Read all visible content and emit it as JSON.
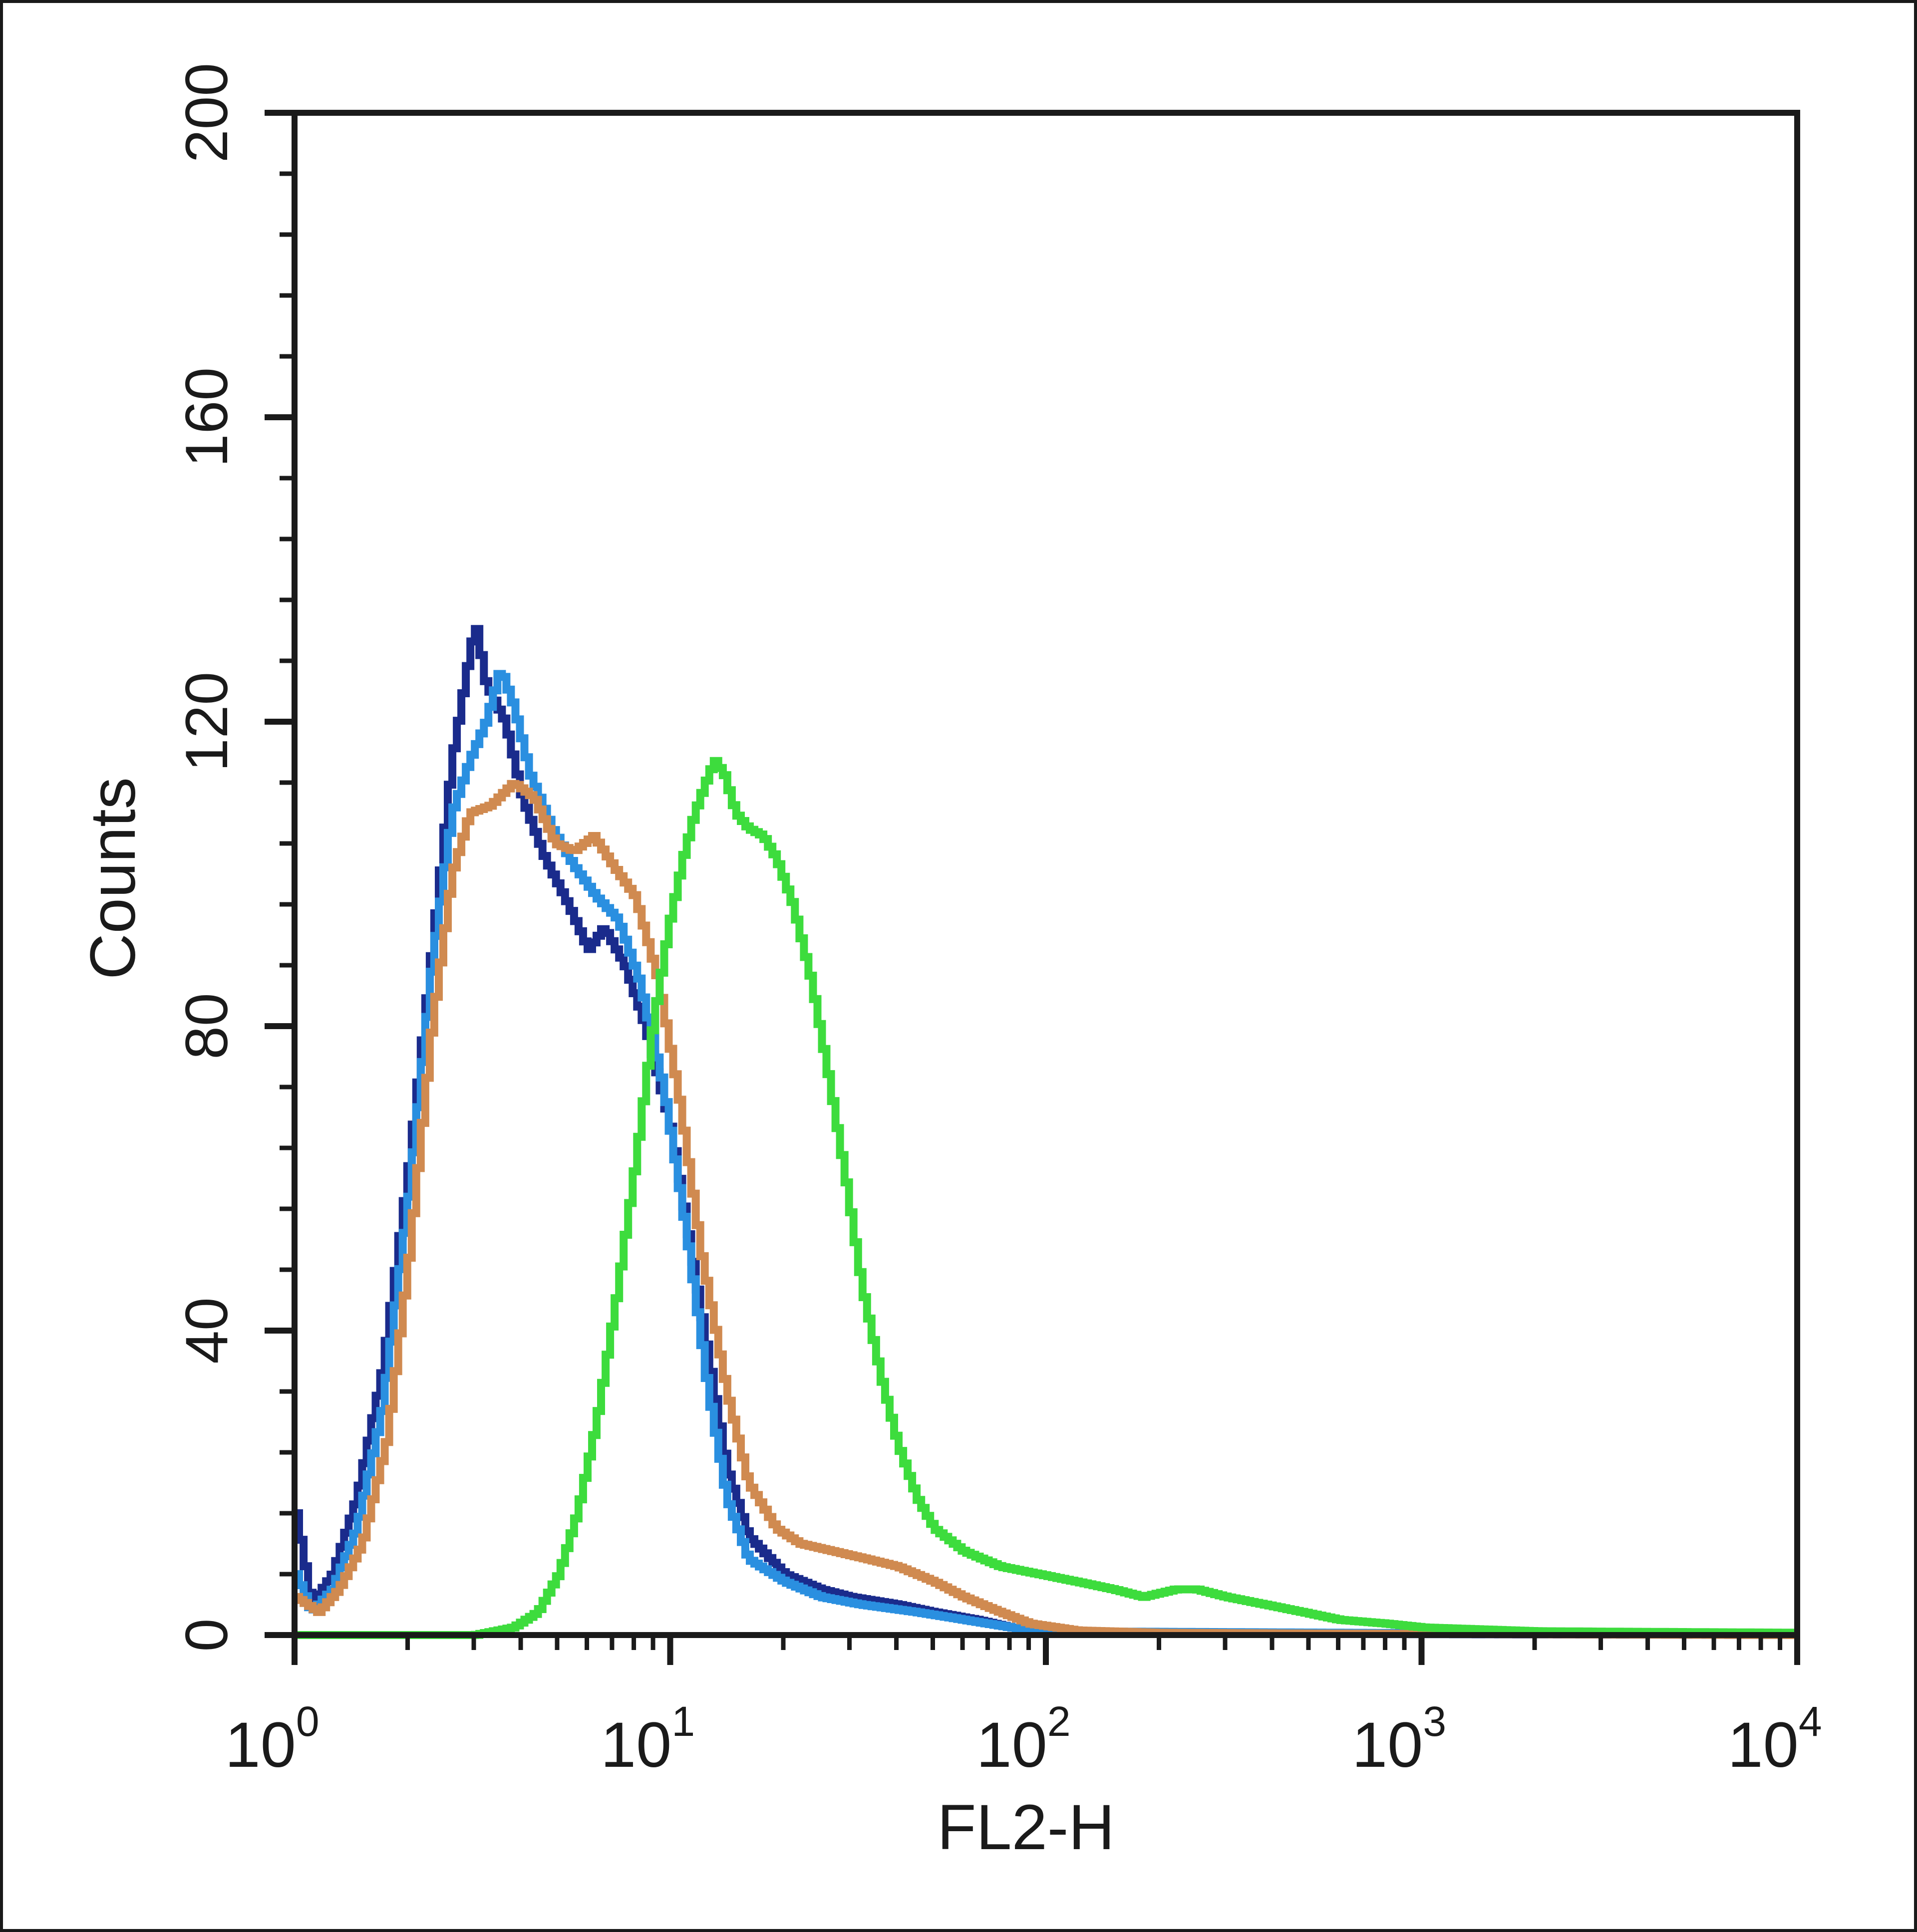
{
  "chart_data": {
    "type": "line",
    "xlabel": "FL2-H",
    "ylabel": "Counts",
    "x_scale": "log",
    "xlim": [
      1,
      10000
    ],
    "ylim": [
      0,
      200
    ],
    "x_ticks": [
      {
        "base": "10",
        "exp": "0",
        "value": 1
      },
      {
        "base": "10",
        "exp": "1",
        "value": 10
      },
      {
        "base": "10",
        "exp": "2",
        "value": 100
      },
      {
        "base": "10",
        "exp": "3",
        "value": 1000
      },
      {
        "base": "10",
        "exp": "4",
        "value": 10000
      }
    ],
    "y_ticks": [
      "0",
      "40",
      "80",
      "120",
      "160",
      "200"
    ],
    "y_tick_values": [
      0,
      40,
      80,
      120,
      160,
      200
    ],
    "grid": false,
    "series": [
      {
        "color": "#1a2b8c",
        "points": [
          [
            1,
            16
          ],
          [
            1.1,
            4
          ],
          [
            1.25,
            8
          ],
          [
            1.45,
            18
          ],
          [
            1.7,
            35
          ],
          [
            2.0,
            62
          ],
          [
            2.3,
            90
          ],
          [
            2.6,
            115
          ],
          [
            2.85,
            127
          ],
          [
            3.0,
            133
          ],
          [
            3.2,
            125
          ],
          [
            3.6,
            120
          ],
          [
            4.0,
            110
          ],
          [
            4.6,
            102
          ],
          [
            5.3,
            96
          ],
          [
            6.0,
            90
          ],
          [
            6.6,
            93
          ],
          [
            7.5,
            88
          ],
          [
            8.5,
            80
          ],
          [
            10,
            66
          ],
          [
            12,
            42
          ],
          [
            14,
            22
          ],
          [
            16,
            13
          ],
          [
            20,
            8
          ],
          [
            25,
            6
          ],
          [
            30,
            5
          ],
          [
            40,
            4
          ],
          [
            50,
            3
          ],
          [
            65,
            2
          ],
          [
            80,
            1
          ],
          [
            100,
            0.5
          ],
          [
            200,
            0.2
          ],
          [
            10000,
            0
          ]
        ]
      },
      {
        "color": "#2a8fe0",
        "points": [
          [
            1,
            8
          ],
          [
            1.1,
            3
          ],
          [
            1.25,
            6
          ],
          [
            1.45,
            14
          ],
          [
            1.7,
            30
          ],
          [
            2.0,
            58
          ],
          [
            2.3,
            88
          ],
          [
            2.6,
            108
          ],
          [
            2.9,
            115
          ],
          [
            3.2,
            120
          ],
          [
            3.5,
            127
          ],
          [
            3.8,
            122
          ],
          [
            4.2,
            113
          ],
          [
            4.8,
            106
          ],
          [
            5.5,
            101
          ],
          [
            6.3,
            97
          ],
          [
            7.2,
            94
          ],
          [
            8.2,
            86
          ],
          [
            9.5,
            72
          ],
          [
            11,
            52
          ],
          [
            12.5,
            32
          ],
          [
            14,
            18
          ],
          [
            16,
            10
          ],
          [
            20,
            7
          ],
          [
            25,
            5
          ],
          [
            32,
            4
          ],
          [
            45,
            3
          ],
          [
            60,
            2
          ],
          [
            80,
            1
          ],
          [
            100,
            0.5
          ],
          [
            10000,
            0
          ]
        ]
      },
      {
        "color": "#d08a50",
        "points": [
          [
            1,
            5
          ],
          [
            1.15,
            3
          ],
          [
            1.3,
            6
          ],
          [
            1.5,
            12
          ],
          [
            1.75,
            26
          ],
          [
            2.0,
            50
          ],
          [
            2.3,
            80
          ],
          [
            2.6,
            100
          ],
          [
            2.9,
            108
          ],
          [
            3.3,
            109
          ],
          [
            3.8,
            112
          ],
          [
            4.3,
            110
          ],
          [
            4.9,
            104
          ],
          [
            5.5,
            103
          ],
          [
            6.2,
            105
          ],
          [
            7.0,
            101
          ],
          [
            8.0,
            97
          ],
          [
            9.2,
            86
          ],
          [
            10.5,
            70
          ],
          [
            12,
            50
          ],
          [
            14,
            32
          ],
          [
            16,
            20
          ],
          [
            19,
            14
          ],
          [
            22,
            12
          ],
          [
            27,
            11
          ],
          [
            33,
            10
          ],
          [
            40,
            9
          ],
          [
            50,
            7
          ],
          [
            60,
            5
          ],
          [
            75,
            3
          ],
          [
            90,
            1.5
          ],
          [
            120,
            0.6
          ],
          [
            200,
            0.3
          ],
          [
            500,
            0.2
          ],
          [
            10000,
            0
          ]
        ]
      },
      {
        "color": "#3ddc3d",
        "points": [
          [
            1,
            0
          ],
          [
            3,
            0
          ],
          [
            3.8,
            1
          ],
          [
            4.4,
            3
          ],
          [
            5.0,
            8
          ],
          [
            5.6,
            16
          ],
          [
            6.3,
            28
          ],
          [
            7.1,
            44
          ],
          [
            8.0,
            62
          ],
          [
            8.9,
            80
          ],
          [
            9.8,
            93
          ],
          [
            10.7,
            102
          ],
          [
            11.5,
            108
          ],
          [
            12.3,
            112
          ],
          [
            13.0,
            115
          ],
          [
            13.8,
            113
          ],
          [
            14.8,
            108
          ],
          [
            16,
            106
          ],
          [
            17.5,
            105
          ],
          [
            19,
            102
          ],
          [
            21,
            96
          ],
          [
            23.5,
            86
          ],
          [
            26,
            74
          ],
          [
            29,
            60
          ],
          [
            32,
            46
          ],
          [
            36,
            34
          ],
          [
            40,
            25
          ],
          [
            45,
            18
          ],
          [
            50,
            14
          ],
          [
            60,
            11
          ],
          [
            75,
            9
          ],
          [
            95,
            8
          ],
          [
            120,
            7
          ],
          [
            150,
            6
          ],
          [
            180,
            5
          ],
          [
            220,
            6
          ],
          [
            250,
            6
          ],
          [
            300,
            5
          ],
          [
            380,
            4
          ],
          [
            480,
            3
          ],
          [
            600,
            2
          ],
          [
            800,
            1.5
          ],
          [
            1000,
            1
          ],
          [
            2000,
            0.5
          ],
          [
            10000,
            0.3
          ]
        ]
      }
    ]
  }
}
